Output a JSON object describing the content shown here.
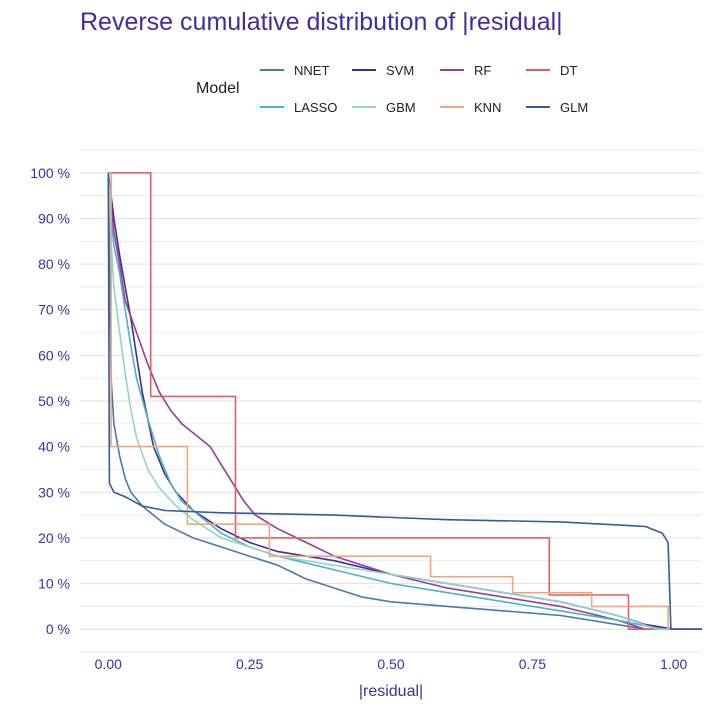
{
  "chart_data": {
    "type": "line",
    "title": "Reverse cumulative distribution of |residual|",
    "xlabel": "|residual|",
    "ylabel": "",
    "xlim": [
      -0.05,
      1.05
    ],
    "ylim": [
      -0.05,
      1.05
    ],
    "x_ticks": [
      0,
      0.25,
      0.5,
      0.75,
      1.0
    ],
    "x_tick_labels": [
      "0.00",
      "0.25",
      "0.50",
      "0.75",
      "1.00"
    ],
    "y_ticks": [
      0,
      0.1,
      0.2,
      0.3,
      0.4,
      0.5,
      0.6,
      0.7,
      0.8,
      0.9,
      1.0
    ],
    "y_tick_labels": [
      "0 %",
      "10 %",
      "20 %",
      "30 %",
      "40 %",
      "50 %",
      "60 %",
      "70 %",
      "80 %",
      "90 %",
      "100 %"
    ],
    "grid": true,
    "legend": {
      "title": "Model",
      "position": "top"
    },
    "series": [
      {
        "name": "NNET",
        "color": "#4a79b0",
        "points": [
          [
            0,
            1.0
          ],
          [
            0.005,
            0.55
          ],
          [
            0.01,
            0.45
          ],
          [
            0.02,
            0.38
          ],
          [
            0.03,
            0.33
          ],
          [
            0.04,
            0.3
          ],
          [
            0.06,
            0.27
          ],
          [
            0.08,
            0.25
          ],
          [
            0.1,
            0.23
          ],
          [
            0.15,
            0.2
          ],
          [
            0.2,
            0.18
          ],
          [
            0.25,
            0.16
          ],
          [
            0.3,
            0.14
          ],
          [
            0.35,
            0.11
          ],
          [
            0.4,
            0.09
          ],
          [
            0.45,
            0.07
          ],
          [
            0.5,
            0.06
          ],
          [
            0.6,
            0.05
          ],
          [
            0.7,
            0.04
          ],
          [
            0.8,
            0.03
          ],
          [
            0.9,
            0.01
          ],
          [
            0.95,
            0.0
          ],
          [
            1.05,
            0.0
          ]
        ]
      },
      {
        "name": "SVM",
        "color": "#3f2d9e",
        "points": [
          [
            0,
            1.0
          ],
          [
            0.005,
            0.95
          ],
          [
            0.01,
            0.9
          ],
          [
            0.02,
            0.82
          ],
          [
            0.03,
            0.75
          ],
          [
            0.04,
            0.68
          ],
          [
            0.05,
            0.6
          ],
          [
            0.06,
            0.52
          ],
          [
            0.07,
            0.46
          ],
          [
            0.08,
            0.4
          ],
          [
            0.1,
            0.34
          ],
          [
            0.12,
            0.3
          ],
          [
            0.15,
            0.26
          ],
          [
            0.2,
            0.22
          ],
          [
            0.25,
            0.19
          ],
          [
            0.3,
            0.17
          ],
          [
            0.4,
            0.15
          ],
          [
            0.5,
            0.12
          ],
          [
            0.6,
            0.1
          ],
          [
            0.7,
            0.08
          ],
          [
            0.8,
            0.06
          ],
          [
            0.9,
            0.03
          ],
          [
            0.95,
            0.01
          ],
          [
            1.0,
            0.0
          ],
          [
            1.05,
            0.0
          ]
        ]
      },
      {
        "name": "RF",
        "color": "#9a3c9a",
        "points": [
          [
            0,
            1.0
          ],
          [
            0.005,
            0.93
          ],
          [
            0.01,
            0.87
          ],
          [
            0.02,
            0.8
          ],
          [
            0.03,
            0.72
          ],
          [
            0.05,
            0.65
          ],
          [
            0.07,
            0.58
          ],
          [
            0.09,
            0.52
          ],
          [
            0.11,
            0.48
          ],
          [
            0.13,
            0.45
          ],
          [
            0.15,
            0.43
          ],
          [
            0.18,
            0.4
          ],
          [
            0.2,
            0.36
          ],
          [
            0.22,
            0.32
          ],
          [
            0.24,
            0.28
          ],
          [
            0.26,
            0.25
          ],
          [
            0.3,
            0.22
          ],
          [
            0.35,
            0.19
          ],
          [
            0.4,
            0.16
          ],
          [
            0.5,
            0.12
          ],
          [
            0.6,
            0.09
          ],
          [
            0.7,
            0.07
          ],
          [
            0.8,
            0.05
          ],
          [
            0.9,
            0.02
          ],
          [
            0.95,
            0.0
          ],
          [
            1.05,
            0.0
          ]
        ]
      },
      {
        "name": "DT",
        "color": "#e35f5f",
        "step": true,
        "points": [
          [
            0,
            1.0
          ],
          [
            0.075,
            1.0
          ],
          [
            0.075,
            0.51
          ],
          [
            0.225,
            0.51
          ],
          [
            0.225,
            0.2
          ],
          [
            0.78,
            0.2
          ],
          [
            0.78,
            0.075
          ],
          [
            0.92,
            0.075
          ],
          [
            0.92,
            0.0
          ],
          [
            1.05,
            0.0
          ]
        ]
      },
      {
        "name": "LASSO",
        "color": "#4bb3c4",
        "points": [
          [
            0,
            1.0
          ],
          [
            0.005,
            0.9
          ],
          [
            0.01,
            0.84
          ],
          [
            0.02,
            0.78
          ],
          [
            0.03,
            0.7
          ],
          [
            0.04,
            0.62
          ],
          [
            0.05,
            0.55
          ],
          [
            0.07,
            0.46
          ],
          [
            0.09,
            0.38
          ],
          [
            0.11,
            0.32
          ],
          [
            0.13,
            0.28
          ],
          [
            0.16,
            0.25
          ],
          [
            0.2,
            0.21
          ],
          [
            0.25,
            0.18
          ],
          [
            0.3,
            0.16
          ],
          [
            0.4,
            0.13
          ],
          [
            0.5,
            0.1
          ],
          [
            0.6,
            0.08
          ],
          [
            0.7,
            0.06
          ],
          [
            0.8,
            0.04
          ],
          [
            0.9,
            0.02
          ],
          [
            0.98,
            0.0
          ],
          [
            1.05,
            0.0
          ]
        ]
      },
      {
        "name": "GBM",
        "color": "#8fd6c8",
        "points": [
          [
            0,
            1.0
          ],
          [
            0.005,
            0.85
          ],
          [
            0.01,
            0.75
          ],
          [
            0.02,
            0.65
          ],
          [
            0.03,
            0.56
          ],
          [
            0.04,
            0.48
          ],
          [
            0.05,
            0.42
          ],
          [
            0.07,
            0.35
          ],
          [
            0.09,
            0.31
          ],
          [
            0.12,
            0.27
          ],
          [
            0.15,
            0.24
          ],
          [
            0.2,
            0.2
          ],
          [
            0.25,
            0.18
          ],
          [
            0.3,
            0.16
          ],
          [
            0.4,
            0.14
          ],
          [
            0.5,
            0.12
          ],
          [
            0.6,
            0.1
          ],
          [
            0.7,
            0.08
          ],
          [
            0.8,
            0.06
          ],
          [
            0.9,
            0.03
          ],
          [
            0.97,
            0.0
          ],
          [
            1.05,
            0.0
          ]
        ]
      },
      {
        "name": "KNN",
        "color": "#f2a57c",
        "step": true,
        "points": [
          [
            0,
            1.0
          ],
          [
            0.005,
            1.0
          ],
          [
            0.005,
            0.4
          ],
          [
            0.14,
            0.4
          ],
          [
            0.14,
            0.23
          ],
          [
            0.285,
            0.23
          ],
          [
            0.285,
            0.16
          ],
          [
            0.57,
            0.16
          ],
          [
            0.57,
            0.115
          ],
          [
            0.715,
            0.115
          ],
          [
            0.715,
            0.08
          ],
          [
            0.855,
            0.08
          ],
          [
            0.855,
            0.05
          ],
          [
            0.99,
            0.05
          ],
          [
            0.99,
            0.0
          ],
          [
            1.05,
            0.0
          ]
        ]
      },
      {
        "name": "GLM",
        "color": "#2e5f9a",
        "points": [
          [
            0,
            1.0
          ],
          [
            0.002,
            0.32
          ],
          [
            0.01,
            0.3
          ],
          [
            0.03,
            0.29
          ],
          [
            0.06,
            0.27
          ],
          [
            0.1,
            0.26
          ],
          [
            0.2,
            0.255
          ],
          [
            0.4,
            0.25
          ],
          [
            0.6,
            0.24
          ],
          [
            0.8,
            0.235
          ],
          [
            0.95,
            0.225
          ],
          [
            0.98,
            0.21
          ],
          [
            0.99,
            0.19
          ],
          [
            0.995,
            0.0
          ],
          [
            1.05,
            0.0
          ]
        ]
      }
    ]
  }
}
